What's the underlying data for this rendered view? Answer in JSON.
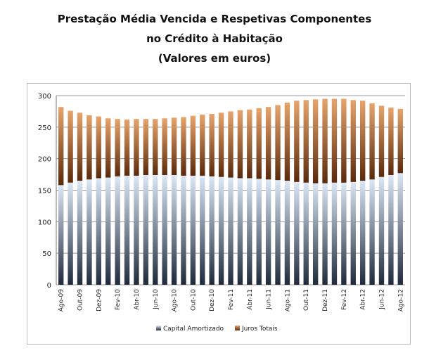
{
  "chart_data": {
    "type": "bar",
    "stacked": true,
    "title_lines": [
      "Prestação Média Vencida e Respetivas Componentes",
      "no Crédito à Habitação",
      "(Valores em euros)"
    ],
    "categories": [
      "Ago-09",
      "Set-09",
      "Out-09",
      "Nov-09",
      "Dez-09",
      "Jan-10",
      "Fev-10",
      "Mar-10",
      "Abr-10",
      "Mai-10",
      "Jun-10",
      "Jul-10",
      "Ago-10",
      "Set-10",
      "Out-10",
      "Nov-10",
      "Dez-10",
      "Jan-11",
      "Fev-11",
      "Mar-11",
      "Abr-11",
      "Mai-11",
      "Jun-11",
      "Jul-11",
      "Ago-11",
      "Set-11",
      "Out-11",
      "Nov-11",
      "Dez-11",
      "Jan-12",
      "Fev-12",
      "Mar-12",
      "Abr-12",
      "Mai-12",
      "Jun-12",
      "Jul-12",
      "Ago-12"
    ],
    "series": [
      {
        "name": "Capital Amortizado",
        "color": "#c6d9f0",
        "values": [
          158,
          162,
          165,
          167,
          169,
          170,
          172,
          173,
          173,
          174,
          174,
          174,
          174,
          173,
          173,
          173,
          172,
          171,
          170,
          169,
          169,
          168,
          167,
          166,
          165,
          163,
          162,
          161,
          161,
          162,
          162,
          163,
          165,
          167,
          171,
          174,
          177
        ]
      },
      {
        "name": "Juros Totais",
        "color": "#a0522d",
        "values": [
          124,
          114,
          108,
          102,
          98,
          94,
          91,
          89,
          90,
          89,
          89,
          90,
          91,
          93,
          95,
          97,
          99,
          102,
          105,
          108,
          109,
          112,
          115,
          119,
          124,
          129,
          131,
          133,
          134,
          133,
          133,
          130,
          127,
          121,
          113,
          107,
          102
        ]
      }
    ],
    "ylim": [
      0,
      300
    ],
    "yticks": [
      0,
      50,
      100,
      150,
      200,
      250,
      300
    ],
    "grid": true,
    "legend": "bottom"
  }
}
